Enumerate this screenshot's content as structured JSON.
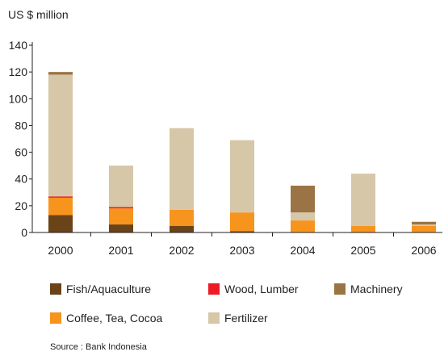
{
  "chart_data": {
    "type": "bar",
    "stacked": true,
    "title": "",
    "xlabel": "",
    "ylabel": "US $ million",
    "ylim": [
      0,
      140
    ],
    "yticks": [
      0,
      20,
      40,
      60,
      80,
      100,
      120,
      140
    ],
    "categories": [
      "2000",
      "2001",
      "2002",
      "2003",
      "2004",
      "2005",
      "2006"
    ],
    "series": [
      {
        "name": "Fish/Aquaculture",
        "color": "#6b4318",
        "values": [
          13,
          6,
          5,
          1,
          0,
          0,
          0
        ]
      },
      {
        "name": "Coffee, Tea, Cocoa",
        "color": "#f7941d",
        "values": [
          13,
          12,
          12,
          14,
          9,
          5,
          5
        ]
      },
      {
        "name": "Wood, Lumber",
        "color": "#ed1c24",
        "values": [
          1,
          1,
          0,
          0,
          0,
          0,
          0
        ]
      },
      {
        "name": "Fertilizer",
        "color": "#d6c7a8",
        "values": [
          91,
          31,
          61,
          54,
          6,
          39,
          1
        ]
      },
      {
        "name": "Machinery",
        "color": "#9b7445",
        "values": [
          2,
          0,
          0,
          0,
          20,
          0,
          2
        ]
      }
    ],
    "legend_order": [
      "Fish/Aquaculture",
      "Wood, Lumber",
      "Machinery",
      "Coffee, Tea, Cocoa",
      "Fertilizer"
    ],
    "legend_position": "bottom",
    "grid": false,
    "source": "Source : Bank Indonesia"
  }
}
